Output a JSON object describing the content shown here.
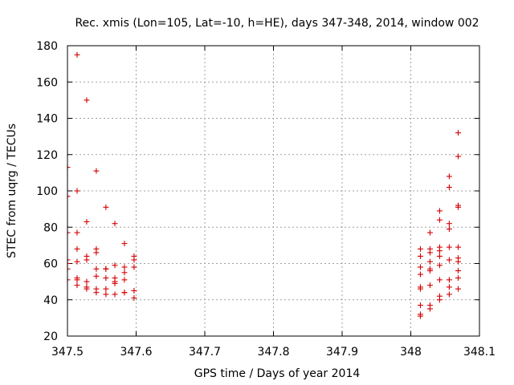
{
  "chart_data": {
    "type": "scatter",
    "title": "Rec. xmis (Lon=105, Lat=-10, h=HE), days 347-348, 2014, window 002",
    "xlabel": "GPS time / Days of year 2014",
    "ylabel": "STEC from uqrg / TECUs",
    "xlim": [
      347.5,
      348.1
    ],
    "ylim": [
      20,
      180
    ],
    "xticks": [
      347.5,
      347.6,
      347.7,
      347.8,
      347.9,
      348.0,
      348.1
    ],
    "xtick_labels": [
      "347.5",
      "347.6",
      "347.7",
      "347.8",
      "347.9",
      "348",
      "348.1"
    ],
    "yticks": [
      20,
      40,
      60,
      80,
      100,
      120,
      140,
      160,
      180
    ],
    "ytick_labels": [
      "20",
      "40",
      "60",
      "80",
      "100",
      "120",
      "140",
      "160",
      "180"
    ],
    "grid": true,
    "marker": "+",
    "color": "#d40000",
    "series": [
      {
        "name": "STEC",
        "points": [
          [
            347.5,
            113
          ],
          [
            347.5,
            97
          ],
          [
            347.5,
            77
          ],
          [
            347.5,
            62
          ],
          [
            347.5,
            60
          ],
          [
            347.5,
            57
          ],
          [
            347.5,
            51
          ],
          [
            347.514,
            175
          ],
          [
            347.514,
            100
          ],
          [
            347.514,
            77
          ],
          [
            347.514,
            68
          ],
          [
            347.514,
            61
          ],
          [
            347.514,
            52
          ],
          [
            347.514,
            51
          ],
          [
            347.514,
            48
          ],
          [
            347.528,
            150
          ],
          [
            347.528,
            83
          ],
          [
            347.528,
            64
          ],
          [
            347.528,
            62
          ],
          [
            347.528,
            50
          ],
          [
            347.528,
            47
          ],
          [
            347.528,
            46
          ],
          [
            347.542,
            111
          ],
          [
            347.542,
            68
          ],
          [
            347.542,
            66
          ],
          [
            347.542,
            57
          ],
          [
            347.542,
            53
          ],
          [
            347.542,
            46
          ],
          [
            347.542,
            44
          ],
          [
            347.556,
            91
          ],
          [
            347.556,
            57
          ],
          [
            347.556,
            57
          ],
          [
            347.556,
            52
          ],
          [
            347.556,
            46
          ],
          [
            347.556,
            43
          ],
          [
            347.569,
            82
          ],
          [
            347.569,
            59
          ],
          [
            347.569,
            52
          ],
          [
            347.569,
            50
          ],
          [
            347.569,
            49
          ],
          [
            347.569,
            43
          ],
          [
            347.583,
            71
          ],
          [
            347.583,
            58
          ],
          [
            347.583,
            55
          ],
          [
            347.583,
            51
          ],
          [
            347.583,
            44
          ],
          [
            347.583,
            44
          ],
          [
            347.597,
            64
          ],
          [
            347.597,
            62
          ],
          [
            347.597,
            58
          ],
          [
            347.597,
            45
          ],
          [
            347.597,
            41
          ],
          [
            348.014,
            68
          ],
          [
            348.014,
            64
          ],
          [
            348.014,
            58
          ],
          [
            348.014,
            54
          ],
          [
            348.014,
            47
          ],
          [
            348.014,
            46
          ],
          [
            348.014,
            37
          ],
          [
            348.014,
            32
          ],
          [
            348.014,
            31
          ],
          [
            348.028,
            77
          ],
          [
            348.028,
            68
          ],
          [
            348.028,
            66
          ],
          [
            348.028,
            61
          ],
          [
            348.028,
            57
          ],
          [
            348.028,
            56
          ],
          [
            348.028,
            48
          ],
          [
            348.028,
            37
          ],
          [
            348.028,
            35
          ],
          [
            348.042,
            89
          ],
          [
            348.042,
            84
          ],
          [
            348.042,
            69
          ],
          [
            348.042,
            67
          ],
          [
            348.042,
            64
          ],
          [
            348.042,
            59
          ],
          [
            348.042,
            51
          ],
          [
            348.042,
            42
          ],
          [
            348.042,
            40
          ],
          [
            348.056,
            108
          ],
          [
            348.056,
            102
          ],
          [
            348.056,
            82
          ],
          [
            348.056,
            79
          ],
          [
            348.056,
            69
          ],
          [
            348.056,
            62
          ],
          [
            348.056,
            51
          ],
          [
            348.056,
            47
          ],
          [
            348.056,
            43
          ],
          [
            348.069,
            132
          ],
          [
            348.069,
            119
          ],
          [
            348.069,
            92
          ],
          [
            348.069,
            91
          ],
          [
            348.069,
            69
          ],
          [
            348.069,
            63
          ],
          [
            348.069,
            61
          ],
          [
            348.069,
            56
          ],
          [
            348.069,
            52
          ],
          [
            348.069,
            46
          ]
        ]
      }
    ]
  }
}
